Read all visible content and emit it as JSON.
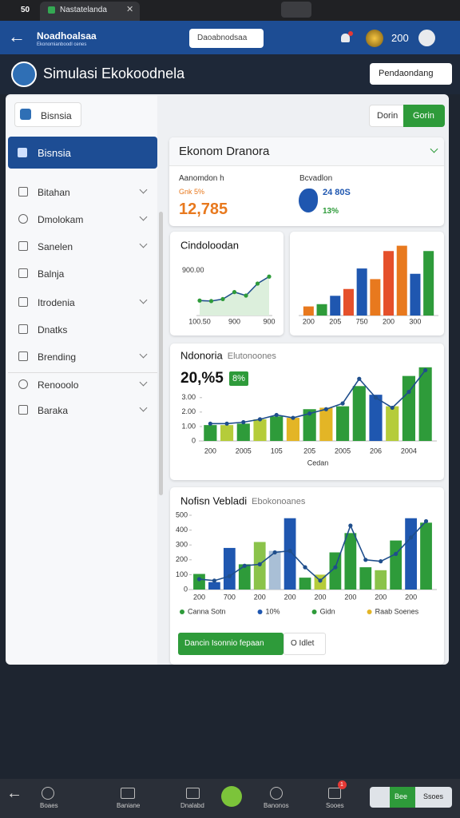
{
  "browser": {
    "tab_count": "50",
    "tab_title": "Nastatelanda"
  },
  "header": {
    "brand": "Noadhoalsaa",
    "brand_sub": "Ekonomianboodl cenes",
    "search": "Daoabnodsaa",
    "points": "200"
  },
  "page": {
    "title": "Simulasi Ekokoodnela",
    "action": "Pendaondang"
  },
  "sidebar": {
    "top_button": "Bisnsia",
    "active": "Bisnsia",
    "items": [
      "Bitahan",
      "Dmolokam",
      "Sanelen",
      "Balnja",
      "Itrodenia",
      "Dnatks",
      "Brending",
      "Renooolo",
      "Baraka"
    ]
  },
  "toggle": [
    "Dorin",
    "Gorin"
  ],
  "summary": {
    "title": "Ekonom Dranora",
    "left_label": "Aanomdon h",
    "left_sub": "Gnk 5%",
    "left_value": "12,785",
    "right_label": "Bcvadlon",
    "right_value": "24 80S",
    "right_sub": "13%"
  },
  "charts": [
    {
      "type": "area",
      "title": "Cindoloodan",
      "categories": [
        "100.50",
        null,
        null,
        "900",
        null,
        null,
        "900"
      ],
      "series": [
        {
          "type": "area",
          "color": "#1f4e8c",
          "values": [
            300,
            290,
            330,
            470,
            400,
            640,
            780
          ]
        }
      ],
      "ylim": [
        0,
        1200
      ],
      "yticks": [
        {
          "value": 900,
          "label": "900.00"
        }
      ]
    },
    {
      "type": "bar",
      "categories": [
        "200",
        null,
        "205",
        null,
        "750",
        null,
        "200",
        null,
        "300",
        null
      ],
      "series": [
        {
          "type": "bar",
          "colors": [
            "#e8791e",
            "#2e9b3a",
            "#1f57b0",
            "#e5502b",
            "#1f57b0",
            "#e8791e",
            "#e5502b",
            "#e8791e",
            "#1f57b0",
            "#2e9b3a"
          ],
          "values": [
            12,
            15,
            26,
            35,
            62,
            48,
            85,
            92,
            55,
            85
          ]
        }
      ],
      "ylim": [
        0,
        100
      ],
      "yticks": []
    },
    {
      "type": "bar",
      "title": "Ndonoria",
      "subtitle": "Elutonoones",
      "headline": "20,%5",
      "badge": "8%",
      "xlabel": "Cedan",
      "categories": [
        "200",
        null,
        "2005",
        null,
        "105",
        null,
        "205",
        null,
        "2005",
        null,
        "206",
        null,
        "2004",
        null
      ],
      "series": [
        {
          "type": "bar",
          "colors": [
            "#2e9b3a",
            "#b5cc3a",
            "#2e9b3a",
            "#b5cc3a",
            "#2e9b3a",
            "#e3b526",
            "#2e9b3a",
            "#e3b526",
            "#2e9b3a",
            "#2e9b3a",
            "#1f57b0",
            "#b5cc3a",
            "#2e9b3a",
            "#2e9b3a"
          ],
          "values": [
            1.1,
            1.1,
            1.2,
            1.5,
            1.7,
            1.6,
            2.2,
            2.3,
            2.4,
            3.8,
            3.2,
            2.4,
            4.5,
            5.1
          ]
        },
        {
          "type": "line",
          "color": "#1f4e8c",
          "values": [
            1.2,
            1.2,
            1.3,
            1.5,
            1.8,
            1.6,
            1.9,
            2.2,
            2.6,
            4.3,
            3.0,
            2.3,
            3.4,
            4.9
          ]
        }
      ],
      "ylim": [
        0,
        5.2
      ],
      "yticks": [
        0,
        {
          "value": 1,
          "label": "1.00"
        },
        {
          "value": 2,
          "label": "2.00"
        },
        {
          "value": 3,
          "label": "3.00"
        }
      ]
    },
    {
      "type": "bar",
      "title": "Nofisn Vebladi",
      "subtitle": "Ebokonoanes",
      "categories": [
        "200",
        null,
        "700",
        null,
        "200",
        null,
        "200",
        null,
        "200",
        null,
        "200",
        null,
        "200",
        null,
        "200",
        null
      ],
      "series": [
        {
          "type": "bar",
          "colors": [
            "#2e9b3a",
            "#1f57b0",
            "#1f57b0",
            "#2e9b3a",
            "#8bc34a",
            "#a9bfd6",
            "#1f57b0",
            "#2e9b3a",
            "#b5cc3a",
            "#2e9b3a",
            "#2e9b3a",
            "#2e9b3a",
            "#8bc34a",
            "#2e9b3a",
            "#1f57b0",
            "#2e9b3a"
          ],
          "values": [
            105,
            50,
            280,
            170,
            320,
            260,
            480,
            80,
            100,
            250,
            380,
            150,
            130,
            330,
            480,
            450
          ]
        },
        {
          "type": "line",
          "color": "#1f4e8c",
          "values": [
            70,
            60,
            90,
            160,
            170,
            250,
            260,
            150,
            60,
            150,
            430,
            200,
            190,
            240,
            350,
            460
          ]
        }
      ],
      "ylim": [
        0,
        500
      ],
      "yticks": [
        0,
        100,
        200,
        300,
        400,
        500
      ],
      "legend": [
        {
          "name": "Canna Sotn",
          "color": "#2e9b3a"
        },
        {
          "name": "10%",
          "color": "#1f57b0"
        },
        {
          "name": "Gidn",
          "color": "#2e9b3a"
        },
        {
          "name": "Raab Soenes",
          "color": "#e3b526"
        }
      ]
    }
  ],
  "actions": [
    "Dancin Isonnio fepaan",
    "O Idlet"
  ],
  "bottom_nav": {
    "items": [
      "Boaes",
      "Baniane",
      "Dnalabd",
      "Banonos",
      "Sooes"
    ],
    "badge": "1",
    "toggle": [
      "Bee",
      "Ssoes"
    ]
  }
}
